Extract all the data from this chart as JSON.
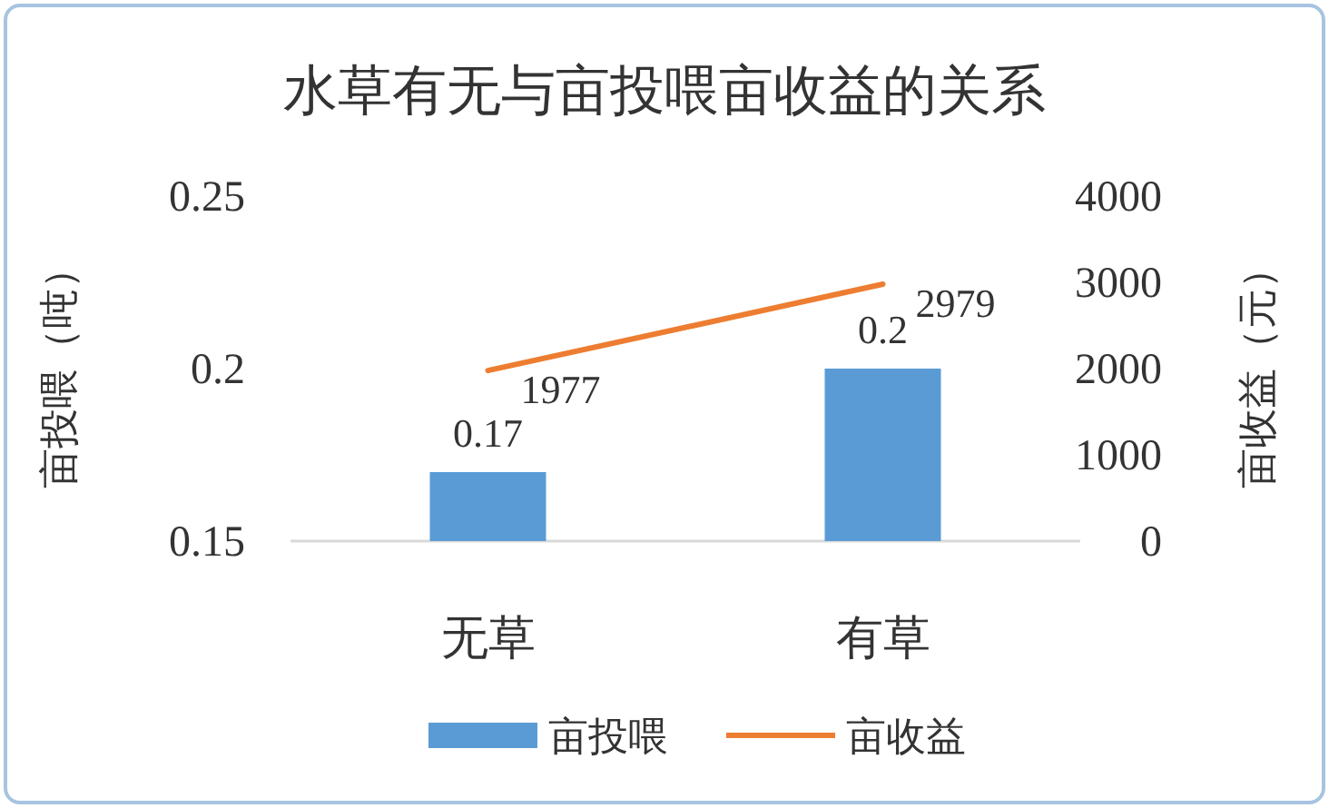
{
  "chart_data": {
    "type": "bar",
    "title": "水草有无与亩投喂亩收益的关系",
    "categories": [
      "无草",
      "有草"
    ],
    "series": [
      {
        "name": "亩投喂",
        "color": "#5b9bd5",
        "values": [
          0.17,
          0.2
        ]
      },
      {
        "name": "亩收益",
        "type": "line",
        "axis": "y2",
        "color": "#ed7d31",
        "values": [
          1977,
          2979
        ]
      }
    ],
    "ylabel": "亩投喂（吨）",
    "y2label": "亩收益（元）",
    "ylim": [
      0.15,
      0.25
    ],
    "yticks": [
      0.15,
      0.2,
      0.25
    ],
    "y2lim": [
      0,
      4000
    ],
    "y2ticks": [
      0,
      1000,
      2000,
      3000,
      4000
    ],
    "data_labels": true,
    "legend": "bottom",
    "grid": false
  }
}
